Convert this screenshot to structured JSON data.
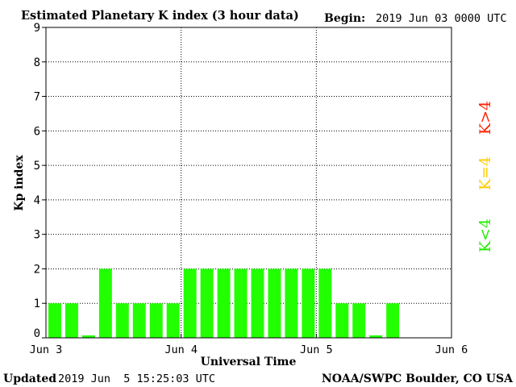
{
  "chart_data": {
    "type": "bar",
    "title": "Estimated Planetary K index (3 hour data)",
    "begin_label": "Begin:",
    "begin_value": "2019 Jun 03 0000 UTC",
    "xlabel": "Universal Time",
    "ylabel": "Kp index",
    "x_tick_labels": [
      "Jun 3",
      "Jun 4",
      "Jun 5",
      "Jun 6"
    ],
    "y_ticks": [
      0,
      1,
      2,
      3,
      4,
      5,
      6,
      7,
      8,
      9
    ],
    "ylim": [
      0,
      9
    ],
    "grid": true,
    "values": [
      1,
      1,
      0.07,
      2,
      1,
      1,
      1,
      1,
      2,
      2,
      2,
      2,
      2,
      2,
      2,
      2,
      2,
      1,
      1,
      0.07,
      1
    ],
    "slots_total": 24,
    "bar_color": "#22ff00",
    "legend": [
      {
        "label": "K<4",
        "color": "#22ee00"
      },
      {
        "label": "K=4",
        "color": "#ffcc00"
      },
      {
        "label": "K>4",
        "color": "#ff2200"
      }
    ]
  },
  "footer": {
    "updated_label": "Updated",
    "updated_value": "2019 Jun  5 15:25:03 UTC",
    "source": "NOAA/SWPC Boulder, CO USA"
  }
}
